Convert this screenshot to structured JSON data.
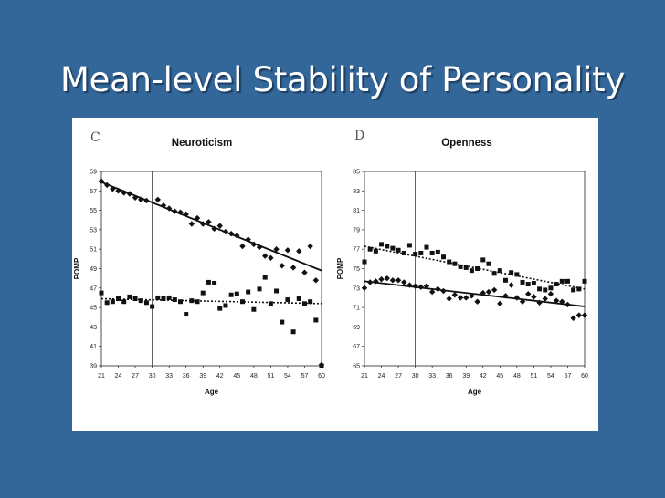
{
  "slide": {
    "title": "Mean-level Stability of Personality"
  },
  "chart_data": [
    {
      "type": "scatter",
      "panel_letter": "C",
      "title": "Neuroticism",
      "xlabel": "Age",
      "ylabel": "POMP",
      "xlim": [
        21,
        60
      ],
      "ylim": [
        39,
        59
      ],
      "xticks": [
        21,
        24,
        27,
        30,
        33,
        36,
        39,
        42,
        45,
        48,
        51,
        54,
        57,
        60
      ],
      "yticks": [
        39,
        41,
        43,
        45,
        47,
        49,
        51,
        53,
        55,
        57,
        59
      ],
      "reference_line_x": 30,
      "series": [
        {
          "marker": "diamond",
          "x": [
            21,
            22,
            23,
            24,
            25,
            26,
            27,
            28,
            29,
            31,
            32,
            33,
            34,
            35,
            36,
            37,
            38,
            39,
            40,
            41,
            42,
            43,
            44,
            45,
            46,
            47,
            48,
            49,
            50,
            51,
            52,
            53,
            54,
            55,
            56,
            57,
            58,
            59,
            60
          ],
          "y": [
            58,
            57.6,
            57.2,
            57,
            56.8,
            56.7,
            56.3,
            56.1,
            56,
            56.1,
            55.5,
            55.2,
            54.9,
            54.8,
            54.6,
            53.6,
            54.2,
            53.6,
            53.8,
            53.1,
            53.4,
            52.8,
            52.6,
            52.4,
            51.3,
            52,
            51.5,
            51.2,
            50.3,
            50.1,
            51,
            49.3,
            50.9,
            49.1,
            50.8,
            48.6,
            51.3,
            47.8,
            39.1
          ]
        },
        {
          "marker": "square",
          "x": [
            21,
            22,
            23,
            24,
            25,
            26,
            27,
            28,
            29,
            30,
            31,
            32,
            33,
            34,
            35,
            36,
            37,
            38,
            39,
            40,
            41,
            42,
            43,
            44,
            45,
            46,
            47,
            48,
            49,
            50,
            51,
            52,
            53,
            54,
            55,
            56,
            57,
            58,
            59,
            60
          ],
          "y": [
            46.5,
            45.5,
            45.6,
            45.9,
            45.6,
            46.1,
            45.9,
            45.7,
            45.5,
            45.1,
            46,
            45.9,
            46,
            45.8,
            45.6,
            44.3,
            45.7,
            45.6,
            46.5,
            47.6,
            47.5,
            44.9,
            45.2,
            46.3,
            46.4,
            45.6,
            46.6,
            44.8,
            46.9,
            48.1,
            45.4,
            46.7,
            43.5,
            45.8,
            42.5,
            45.9,
            45.4,
            45.6,
            43.7,
            39
          ]
        }
      ],
      "trend_lines": [
        {
          "style": "solid",
          "x": [
            21,
            60
          ],
          "y": [
            57.9,
            48.8
          ]
        },
        {
          "style": "dotted",
          "x": [
            21,
            60
          ],
          "y": [
            45.9,
            45.4
          ]
        }
      ]
    },
    {
      "type": "scatter",
      "panel_letter": "D",
      "title": "Openness",
      "xlabel": "Age",
      "ylabel": "POMP",
      "xlim": [
        21,
        60
      ],
      "ylim": [
        65,
        85
      ],
      "xticks": [
        21,
        24,
        27,
        30,
        33,
        36,
        39,
        42,
        45,
        48,
        51,
        54,
        57,
        60
      ],
      "yticks": [
        65,
        67,
        69,
        71,
        73,
        75,
        77,
        79,
        81,
        83,
        85
      ],
      "reference_line_x": 30,
      "series": [
        {
          "marker": "square",
          "x": [
            21,
            22,
            23,
            24,
            25,
            26,
            27,
            28,
            29,
            30,
            31,
            32,
            33,
            34,
            35,
            36,
            37,
            38,
            39,
            40,
            41,
            42,
            43,
            44,
            45,
            46,
            47,
            48,
            49,
            50,
            51,
            52,
            53,
            54,
            55,
            56,
            57,
            58,
            59,
            60
          ],
          "y": [
            75.7,
            77,
            76.8,
            77.5,
            77.3,
            77.1,
            76.9,
            76.6,
            77.4,
            76.5,
            76.6,
            77.2,
            76.6,
            76.7,
            76.2,
            75.7,
            75.5,
            75.2,
            75.1,
            74.8,
            75,
            75.9,
            75.5,
            74.5,
            74.8,
            73.8,
            74.6,
            74.4,
            73.6,
            73.4,
            73.5,
            72.9,
            72.8,
            73,
            73.4,
            73.7,
            73.7,
            72.8,
            72.9,
            73.7
          ]
        },
        {
          "marker": "diamond",
          "x": [
            21,
            22,
            23,
            24,
            25,
            26,
            27,
            28,
            29,
            30,
            31,
            32,
            33,
            34,
            35,
            36,
            37,
            38,
            39,
            40,
            41,
            42,
            43,
            44,
            45,
            46,
            47,
            48,
            49,
            50,
            51,
            52,
            53,
            54,
            55,
            56,
            57,
            58,
            59,
            60
          ],
          "y": [
            73,
            73.6,
            73.7,
            73.9,
            74,
            73.8,
            73.8,
            73.6,
            73.3,
            73.2,
            73.1,
            73.2,
            72.6,
            72.9,
            72.7,
            71.9,
            72.3,
            72,
            72,
            72.2,
            71.6,
            72.5,
            72.6,
            72.8,
            71.4,
            72.2,
            73.3,
            72,
            71.6,
            72.4,
            72.1,
            71.5,
            71.9,
            72.4,
            71.7,
            71.6,
            71.3,
            69.9,
            70.2,
            70.2
          ]
        }
      ],
      "trend_lines": [
        {
          "style": "solid",
          "x": [
            21,
            60
          ],
          "y": [
            73.7,
            71.1
          ]
        },
        {
          "style": "dotted",
          "x": [
            21,
            60
          ],
          "y": [
            77.3,
            72.9
          ]
        }
      ]
    }
  ]
}
